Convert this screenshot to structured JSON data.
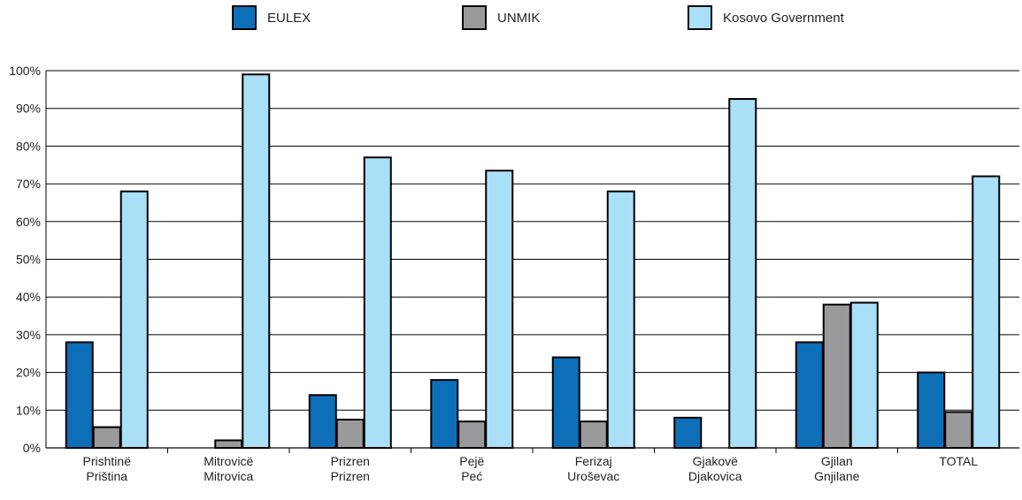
{
  "chart_data": {
    "type": "bar",
    "categories": [
      [
        "Prishtinë",
        "Priština"
      ],
      [
        "Mitrovicë",
        "Mitrovica"
      ],
      [
        "Prizren",
        "Prizren"
      ],
      [
        "Pejë",
        "Peć"
      ],
      [
        "Ferizaj",
        "Uroševac"
      ],
      [
        "Gjakovë",
        "Djakovica"
      ],
      [
        "Gjilan",
        "Gnjilane"
      ],
      [
        "TOTAL"
      ]
    ],
    "series": [
      {
        "name": "EULEX",
        "color": "#0d6fb8",
        "values": [
          28,
          0,
          14,
          18,
          24,
          8,
          28,
          20
        ]
      },
      {
        "name": "UNMIK",
        "color": "#9a9a9c",
        "values": [
          5.5,
          2,
          7.5,
          7,
          7,
          0,
          38,
          9.5
        ]
      },
      {
        "name": "Kosovo Government",
        "color": "#a9dff7",
        "values": [
          68,
          99,
          77,
          73.5,
          68,
          92.5,
          38.5,
          72
        ]
      }
    ],
    "ylim": [
      0,
      100
    ],
    "yticks": [
      "0%",
      "10%",
      "20%",
      "30%",
      "40%",
      "50%",
      "60%",
      "70%",
      "80%",
      "90%",
      "100%"
    ],
    "grid": true,
    "legend_position": "top"
  }
}
